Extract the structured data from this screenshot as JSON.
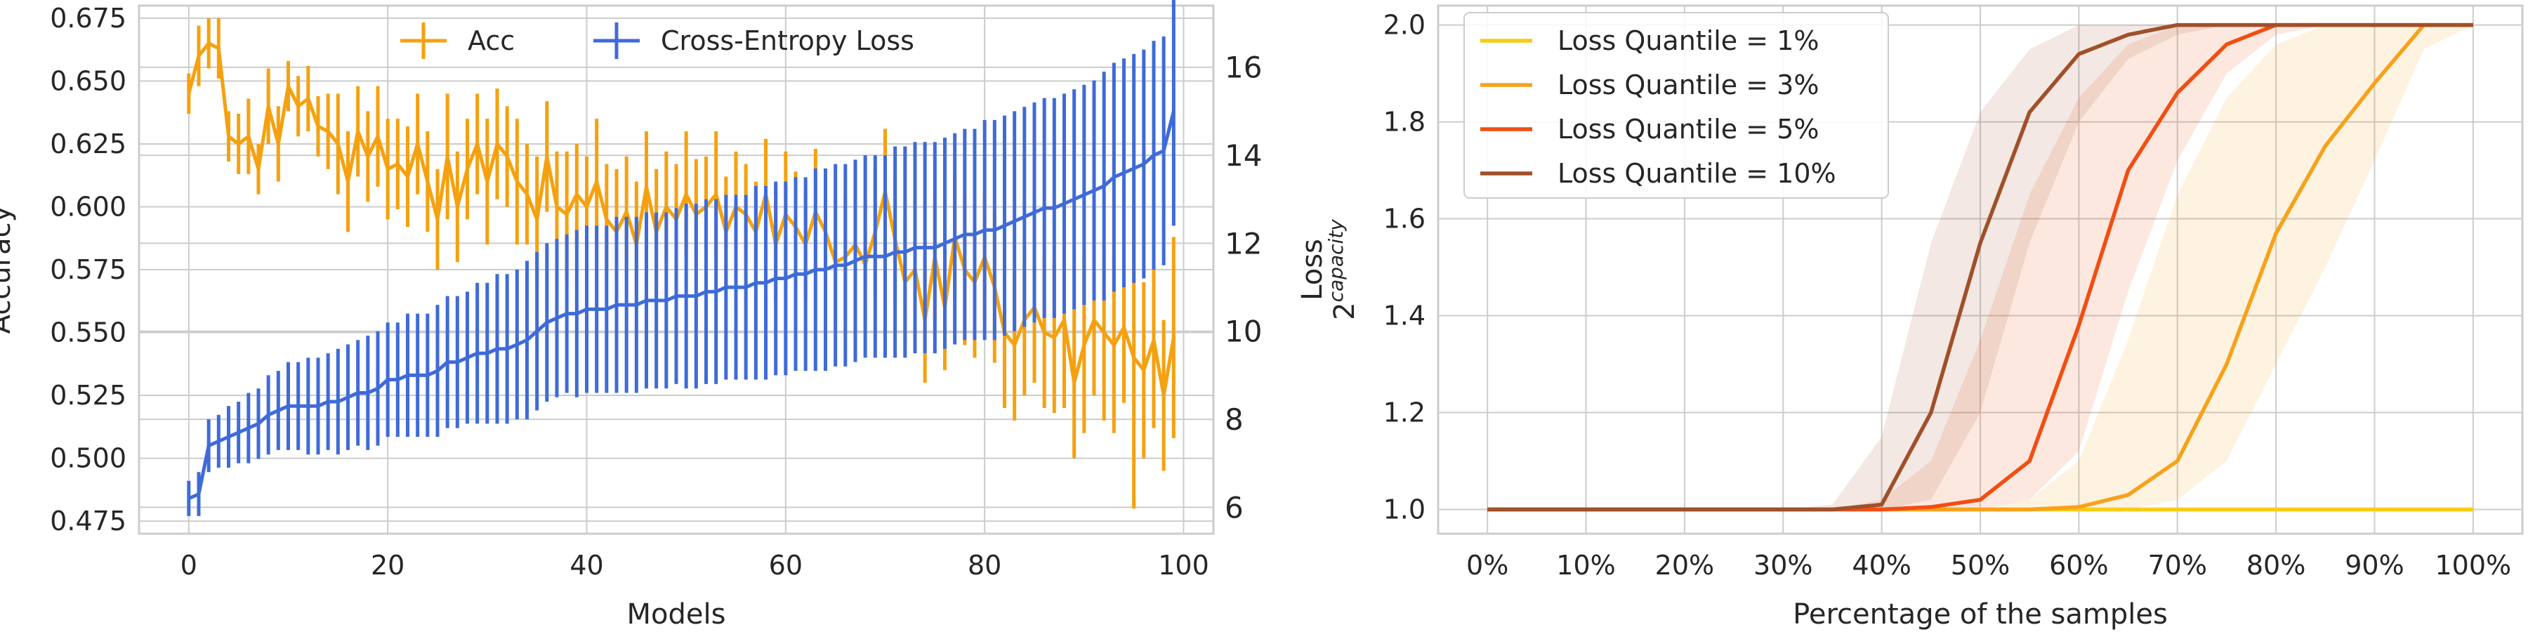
{
  "chart_data": [
    {
      "type": "line",
      "xlabel": "Models",
      "ylabel": "Accuracy",
      "y2label": "Loss",
      "xlim": [
        -5,
        103
      ],
      "ylim": [
        0.47,
        0.68
      ],
      "y2lim": [
        5.4,
        17.4
      ],
      "xticks": [
        0,
        20,
        40,
        60,
        80,
        100
      ],
      "yticks": [
        0.475,
        0.5,
        0.525,
        0.55,
        0.575,
        0.6,
        0.625,
        0.65,
        0.675
      ],
      "ytick_labels": [
        "0.475",
        "0.500",
        "0.525",
        "0.550",
        "0.575",
        "0.600",
        "0.625",
        "0.650",
        "0.675"
      ],
      "y2ticks": [
        6,
        8,
        10,
        12,
        14,
        16
      ],
      "grid": true,
      "legend_position": "top-center",
      "legend": [
        "Acc",
        "Cross-Entropy Loss"
      ],
      "series": [
        {
          "name": "Acc",
          "axis": "left",
          "color": "#f5a10f",
          "x": [
            0,
            1,
            2,
            3,
            4,
            5,
            6,
            7,
            8,
            9,
            10,
            11,
            12,
            13,
            14,
            15,
            16,
            17,
            18,
            19,
            20,
            21,
            22,
            23,
            24,
            25,
            26,
            27,
            28,
            29,
            30,
            31,
            32,
            33,
            34,
            35,
            36,
            37,
            38,
            39,
            40,
            41,
            42,
            43,
            44,
            45,
            46,
            47,
            48,
            49,
            50,
            51,
            52,
            53,
            54,
            55,
            56,
            57,
            58,
            59,
            60,
            61,
            62,
            63,
            64,
            65,
            66,
            67,
            68,
            69,
            70,
            71,
            72,
            73,
            74,
            75,
            76,
            77,
            78,
            79,
            80,
            81,
            82,
            83,
            84,
            85,
            86,
            87,
            88,
            89,
            90,
            91,
            92,
            93,
            94,
            95,
            96,
            97,
            98,
            99
          ],
          "values": [
            0.645,
            0.66,
            0.665,
            0.663,
            0.628,
            0.625,
            0.628,
            0.615,
            0.64,
            0.625,
            0.648,
            0.64,
            0.643,
            0.632,
            0.63,
            0.625,
            0.61,
            0.63,
            0.62,
            0.628,
            0.615,
            0.617,
            0.612,
            0.625,
            0.61,
            0.595,
            0.62,
            0.6,
            0.615,
            0.625,
            0.61,
            0.625,
            0.62,
            0.61,
            0.605,
            0.595,
            0.62,
            0.6,
            0.597,
            0.605,
            0.6,
            0.61,
            0.595,
            0.59,
            0.598,
            0.585,
            0.608,
            0.59,
            0.6,
            0.595,
            0.605,
            0.597,
            0.6,
            0.605,
            0.59,
            0.6,
            0.597,
            0.59,
            0.605,
            0.585,
            0.597,
            0.592,
            0.585,
            0.598,
            0.59,
            0.578,
            0.58,
            0.585,
            0.577,
            0.59,
            0.606,
            0.587,
            0.57,
            0.575,
            0.555,
            0.58,
            0.56,
            0.588,
            0.575,
            0.57,
            0.58,
            0.568,
            0.55,
            0.545,
            0.555,
            0.56,
            0.55,
            0.548,
            0.555,
            0.53,
            0.545,
            0.555,
            0.55,
            0.545,
            0.552,
            0.54,
            0.535,
            0.547,
            0.525,
            0.548
          ],
          "errors": [
            0.008,
            0.012,
            0.01,
            0.012,
            0.01,
            0.012,
            0.015,
            0.01,
            0.015,
            0.015,
            0.01,
            0.012,
            0.013,
            0.012,
            0.015,
            0.02,
            0.02,
            0.018,
            0.018,
            0.02,
            0.02,
            0.018,
            0.02,
            0.02,
            0.02,
            0.02,
            0.025,
            0.022,
            0.02,
            0.02,
            0.025,
            0.022,
            0.02,
            0.025,
            0.02,
            0.025,
            0.022,
            0.022,
            0.025,
            0.02,
            0.02,
            0.025,
            0.022,
            0.025,
            0.022,
            0.025,
            0.022,
            0.025,
            0.022,
            0.022,
            0.025,
            0.022,
            0.02,
            0.025,
            0.022,
            0.022,
            0.02,
            0.02,
            0.022,
            0.022,
            0.025,
            0.022,
            0.022,
            0.025,
            0.022,
            0.025,
            0.025,
            0.022,
            0.025,
            0.025,
            0.025,
            0.025,
            0.025,
            0.025,
            0.025,
            0.025,
            0.025,
            0.025,
            0.03,
            0.03,
            0.025,
            0.03,
            0.03,
            0.03,
            0.03,
            0.03,
            0.03,
            0.03,
            0.035,
            0.03,
            0.035,
            0.03,
            0.035,
            0.035,
            0.03,
            0.06,
            0.035,
            0.035,
            0.03,
            0.04
          ]
        },
        {
          "name": "Cross-Entropy Loss",
          "axis": "right",
          "color": "#3f6bd8",
          "x": [
            0,
            1,
            2,
            3,
            4,
            5,
            6,
            7,
            8,
            9,
            10,
            11,
            12,
            13,
            14,
            15,
            16,
            17,
            18,
            19,
            20,
            21,
            22,
            23,
            24,
            25,
            26,
            27,
            28,
            29,
            30,
            31,
            32,
            33,
            34,
            35,
            36,
            37,
            38,
            39,
            40,
            41,
            42,
            43,
            44,
            45,
            46,
            47,
            48,
            49,
            50,
            51,
            52,
            53,
            54,
            55,
            56,
            57,
            58,
            59,
            60,
            61,
            62,
            63,
            64,
            65,
            66,
            67,
            68,
            69,
            70,
            71,
            72,
            73,
            74,
            75,
            76,
            77,
            78,
            79,
            80,
            81,
            82,
            83,
            84,
            85,
            86,
            87,
            88,
            89,
            90,
            91,
            92,
            93,
            94,
            95,
            96,
            97,
            98,
            99
          ],
          "values": [
            6.2,
            6.3,
            7.4,
            7.5,
            7.6,
            7.7,
            7.8,
            7.9,
            8.1,
            8.2,
            8.3,
            8.3,
            8.3,
            8.3,
            8.4,
            8.4,
            8.5,
            8.6,
            8.6,
            8.7,
            8.9,
            8.9,
            9.0,
            9.0,
            9.0,
            9.1,
            9.3,
            9.3,
            9.4,
            9.5,
            9.5,
            9.6,
            9.6,
            9.7,
            9.8,
            10.0,
            10.2,
            10.3,
            10.4,
            10.4,
            10.5,
            10.5,
            10.5,
            10.6,
            10.6,
            10.6,
            10.7,
            10.7,
            10.7,
            10.8,
            10.8,
            10.8,
            10.9,
            10.9,
            11.0,
            11.0,
            11.0,
            11.1,
            11.1,
            11.2,
            11.2,
            11.3,
            11.3,
            11.4,
            11.4,
            11.5,
            11.5,
            11.6,
            11.7,
            11.7,
            11.7,
            11.8,
            11.8,
            11.9,
            11.9,
            11.9,
            12.0,
            12.1,
            12.2,
            12.2,
            12.3,
            12.3,
            12.4,
            12.5,
            12.6,
            12.7,
            12.8,
            12.8,
            12.9,
            13.0,
            13.1,
            13.2,
            13.3,
            13.5,
            13.6,
            13.7,
            13.8,
            14.0,
            14.1,
            15.0
          ],
          "errors": [
            0.4,
            0.5,
            0.6,
            0.6,
            0.7,
            0.7,
            0.8,
            0.8,
            0.9,
            0.9,
            1.0,
            1.0,
            1.1,
            1.1,
            1.1,
            1.2,
            1.2,
            1.2,
            1.3,
            1.3,
            1.3,
            1.3,
            1.4,
            1.4,
            1.4,
            1.5,
            1.5,
            1.5,
            1.5,
            1.6,
            1.6,
            1.7,
            1.7,
            1.7,
            1.8,
            1.8,
            1.8,
            1.8,
            1.8,
            1.9,
            1.9,
            1.9,
            1.9,
            2.0,
            2.0,
            2.0,
            2.0,
            2.0,
            2.0,
            2.0,
            2.1,
            2.1,
            2.1,
            2.1,
            2.1,
            2.1,
            2.1,
            2.2,
            2.2,
            2.2,
            2.2,
            2.2,
            2.2,
            2.3,
            2.3,
            2.3,
            2.3,
            2.3,
            2.3,
            2.3,
            2.3,
            2.4,
            2.4,
            2.4,
            2.4,
            2.4,
            2.4,
            2.4,
            2.4,
            2.4,
            2.5,
            2.5,
            2.5,
            2.5,
            2.5,
            2.5,
            2.5,
            2.5,
            2.5,
            2.5,
            2.5,
            2.5,
            2.6,
            2.6,
            2.6,
            2.6,
            2.6,
            2.6,
            2.6,
            2.6
          ]
        }
      ]
    },
    {
      "type": "line",
      "xlabel": "Percentage of the samples",
      "ylabel": "2^capacity",
      "ylabel_base": "2",
      "ylabel_exponent": "capacity",
      "xlim": [
        -0.05,
        1.05
      ],
      "ylim": [
        0.95,
        2.04
      ],
      "xticks": [
        0,
        0.1,
        0.2,
        0.3,
        0.4,
        0.5,
        0.6,
        0.7,
        0.8,
        0.9,
        1.0
      ],
      "xtick_labels": [
        "0%",
        "10%",
        "20%",
        "30%",
        "40%",
        "50%",
        "60%",
        "70%",
        "80%",
        "90%",
        "100%"
      ],
      "yticks": [
        1.0,
        1.2,
        1.4,
        1.6,
        1.8,
        2.0
      ],
      "ytick_labels": [
        "1.0",
        "1.2",
        "1.4",
        "1.6",
        "1.8",
        "2.0"
      ],
      "grid": true,
      "legend_position": "top-left",
      "legend": [
        "Loss Quantile = 1%",
        "Loss Quantile = 3%",
        "Loss Quantile = 5%",
        "Loss Quantile = 10%"
      ],
      "series": [
        {
          "name": "Loss Quantile = 1%",
          "color": "#f9cb14",
          "x": [
            0,
            0.6,
            0.65,
            0.7,
            1.0
          ],
          "values": [
            1.0,
            1.0,
            1.0,
            1.0,
            1.0
          ]
        },
        {
          "name": "Loss Quantile = 3%",
          "color": "#f7a21b",
          "x": [
            0,
            0.5,
            0.55,
            0.6,
            0.65,
            0.7,
            0.75,
            0.8,
            0.85,
            0.9,
            0.95,
            1.0
          ],
          "values": [
            1.0,
            1.0,
            1.0,
            1.005,
            1.03,
            1.1,
            1.3,
            1.57,
            1.75,
            1.88,
            2.0,
            2.0
          ],
          "band_lower": [
            1.0,
            1.0,
            1.0,
            1.0,
            1.0,
            1.02,
            1.1,
            1.3,
            1.5,
            1.72,
            1.95,
            2.0
          ],
          "band_upper": [
            1.0,
            1.0,
            1.02,
            1.1,
            1.35,
            1.65,
            1.85,
            1.96,
            2.0,
            2.0,
            2.0,
            2.0
          ]
        },
        {
          "name": "Loss Quantile = 5%",
          "color": "#f24e12",
          "x": [
            0,
            0.35,
            0.4,
            0.45,
            0.5,
            0.55,
            0.6,
            0.65,
            0.7,
            0.75,
            0.8,
            0.85,
            1.0
          ],
          "values": [
            1.0,
            1.0,
            1.0,
            1.005,
            1.02,
            1.1,
            1.38,
            1.7,
            1.86,
            1.96,
            2.0,
            2.0,
            2.0
          ],
          "band_lower": [
            1.0,
            1.0,
            1.0,
            1.0,
            1.0,
            1.02,
            1.12,
            1.45,
            1.72,
            1.9,
            1.98,
            2.0,
            2.0
          ],
          "band_upper": [
            1.0,
            1.0,
            1.02,
            1.1,
            1.35,
            1.65,
            1.85,
            1.96,
            2.0,
            2.0,
            2.0,
            2.0,
            2.0
          ]
        },
        {
          "name": "Loss Quantile = 10%",
          "color": "#a0502a",
          "x": [
            0,
            0.3,
            0.35,
            0.4,
            0.45,
            0.5,
            0.55,
            0.6,
            0.65,
            0.7,
            0.75,
            0.8,
            1.0
          ],
          "values": [
            1.0,
            1.0,
            1.0,
            1.01,
            1.2,
            1.55,
            1.82,
            1.94,
            1.98,
            2.0,
            2.0,
            2.0,
            2.0
          ],
          "band_lower": [
            1.0,
            1.0,
            1.0,
            1.0,
            1.02,
            1.2,
            1.55,
            1.8,
            1.93,
            1.98,
            2.0,
            2.0,
            2.0
          ],
          "band_upper": [
            1.0,
            1.0,
            1.01,
            1.15,
            1.55,
            1.82,
            1.95,
            2.0,
            2.0,
            2.0,
            2.0,
            2.0,
            2.0
          ]
        }
      ]
    }
  ]
}
